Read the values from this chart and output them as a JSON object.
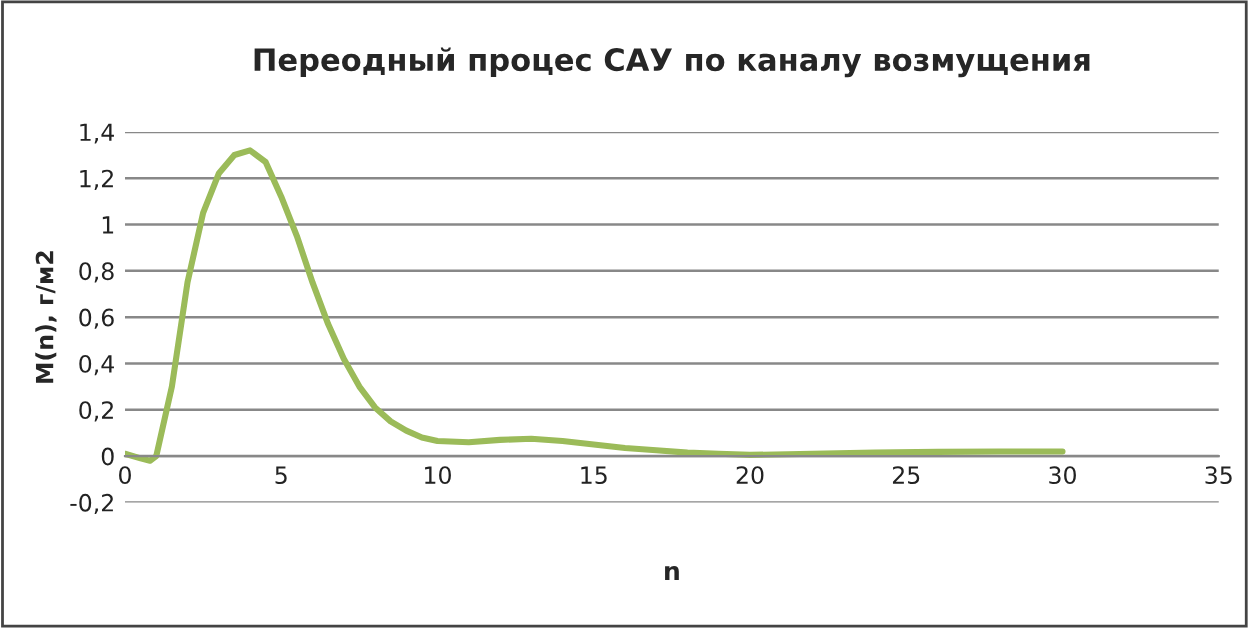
{
  "chart_data": {
    "type": "line",
    "title": "Переодный процес САУ по каналу возмущения",
    "xlabel": "n",
    "ylabel": "M(n), г/м2",
    "x": [
      0,
      0.5,
      0.8,
      1,
      1.5,
      2,
      2.5,
      3,
      3.5,
      4,
      4.5,
      5,
      5.5,
      6,
      6.5,
      7,
      7.5,
      8,
      8.5,
      9,
      9.5,
      10,
      11,
      12,
      13,
      14,
      15,
      16,
      17,
      18,
      19,
      20,
      22,
      24,
      26,
      28,
      30
    ],
    "series": [
      {
        "color": "#9bbb59",
        "values": [
          0.01,
          -0.01,
          -0.02,
          0,
          0.3,
          0.75,
          1.05,
          1.22,
          1.3,
          1.32,
          1.27,
          1.12,
          0.95,
          0.75,
          0.57,
          0.42,
          0.3,
          0.21,
          0.15,
          0.11,
          0.08,
          0.065,
          0.06,
          0.07,
          0.075,
          0.065,
          0.05,
          0.035,
          0.025,
          0.015,
          0.01,
          0.005,
          0.01,
          0.015,
          0.018,
          0.02,
          0.02
        ]
      }
    ],
    "xlim": [
      0,
      35
    ],
    "xticks": [
      0,
      5,
      10,
      15,
      20,
      25,
      30,
      35
    ],
    "ylim": [
      -0.2,
      1.4
    ],
    "yticks": [
      {
        "value": -0.2,
        "label": "-0,2"
      },
      0,
      {
        "value": 0.2,
        "label": "0,2"
      },
      {
        "value": 0.4,
        "label": "0,4"
      },
      {
        "value": 0.6,
        "label": "0,6"
      },
      {
        "value": 0.8,
        "label": "0,8"
      },
      1,
      {
        "value": 1.2,
        "label": "1,2"
      },
      {
        "value": 1.4,
        "label": "1,4"
      }
    ],
    "grid": "y",
    "legend": false,
    "marker": "none",
    "line_style": "solid"
  }
}
